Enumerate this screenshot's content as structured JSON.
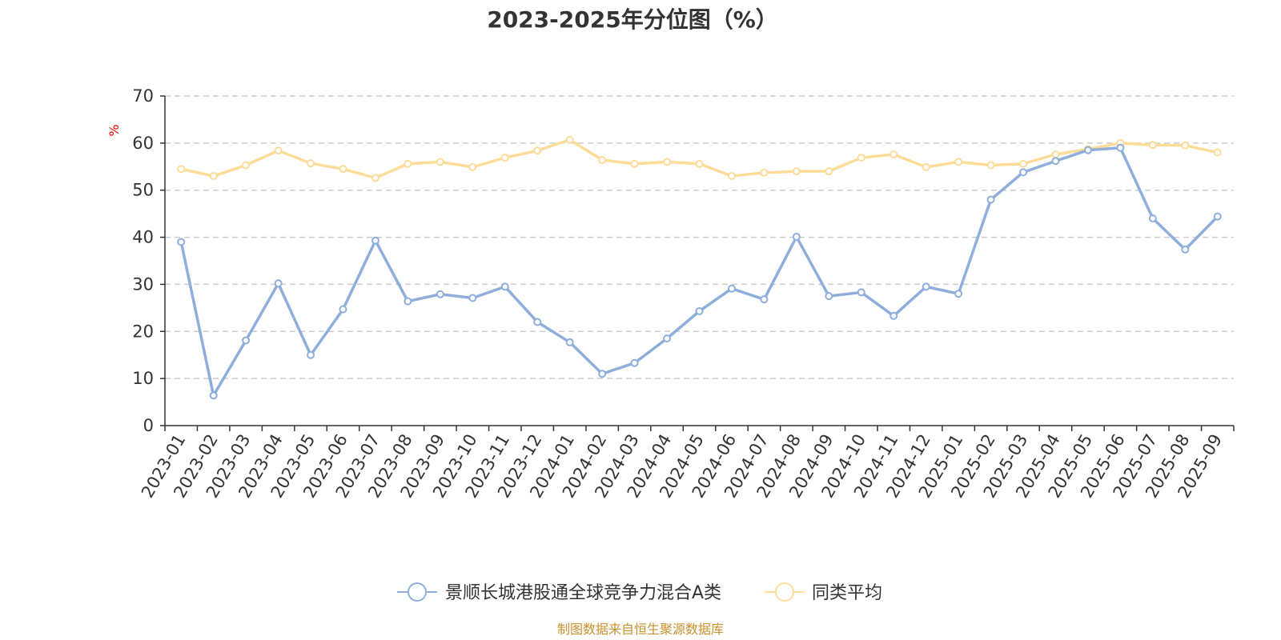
{
  "colors": {
    "series_1": "#8eaedb",
    "series_2": "#fddc9a",
    "grid": "#cccccc",
    "axis": "#333333",
    "y_unit": "#ff0000",
    "source": "#c8912c"
  },
  "chart_data": {
    "type": "line",
    "title": "2023-2025年分位图（%）",
    "ylabel": "%",
    "xlabel": "",
    "ylim": [
      0,
      70
    ],
    "yticks": [
      0,
      10,
      20,
      30,
      40,
      50,
      60,
      70
    ],
    "grid": true,
    "legend_position": "bottom",
    "categories": [
      "2023-01",
      "2023-02",
      "2023-03",
      "2023-04",
      "2023-05",
      "2023-06",
      "2023-07",
      "2023-08",
      "2023-09",
      "2023-10",
      "2023-11",
      "2023-12",
      "2024-01",
      "2024-02",
      "2024-03",
      "2024-04",
      "2024-05",
      "2024-06",
      "2024-07",
      "2024-08",
      "2024-09",
      "2024-10",
      "2024-11",
      "2024-12",
      "2025-01",
      "2025-02",
      "2025-03",
      "2025-04",
      "2025-05",
      "2025-06",
      "2025-07",
      "2025-08",
      "2025-09"
    ],
    "series": [
      {
        "name": "景顺长城港股通全球竞争力混合A类",
        "values": [
          39.0,
          6.4,
          18.1,
          30.2,
          15.0,
          24.7,
          39.3,
          26.4,
          27.9,
          27.1,
          29.5,
          22.0,
          17.7,
          11.0,
          13.3,
          18.5,
          24.3,
          29.1,
          26.8,
          40.1,
          27.5,
          28.3,
          23.3,
          29.5,
          28.0,
          48.0,
          53.8,
          56.2,
          58.5,
          59.0,
          44.0,
          37.4,
          44.4
        ]
      },
      {
        "name": "同类平均",
        "values": [
          54.5,
          53.0,
          55.3,
          58.4,
          55.7,
          54.5,
          52.6,
          55.6,
          56.0,
          54.9,
          56.9,
          58.4,
          60.7,
          56.4,
          55.6,
          56.0,
          55.6,
          53.0,
          53.7,
          54.0,
          54.0,
          56.9,
          57.6,
          54.9,
          56.0,
          55.3,
          55.6,
          57.6,
          58.7,
          60.0,
          59.6,
          59.5,
          58.0
        ]
      }
    ]
  },
  "footer": {
    "source": "制图数据来自恒生聚源数据库"
  }
}
